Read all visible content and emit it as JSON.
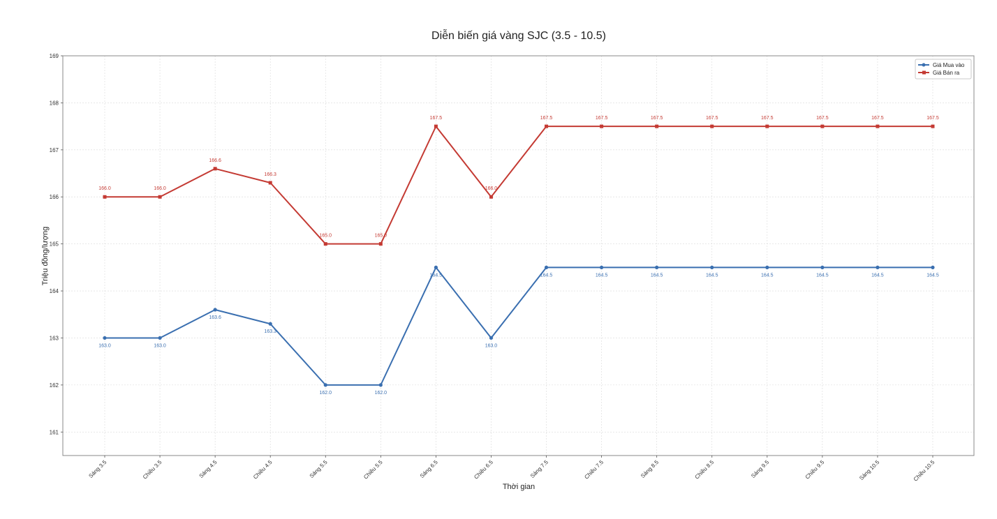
{
  "chart_data": {
    "type": "line",
    "title": "Diễn biến giá vàng SJC (3.5 - 10.5)",
    "xlabel": "Thời gian",
    "ylabel": "Triệu đồng/lượng",
    "categories": [
      "Sáng 3.5",
      "Chiều 3.5",
      "Sáng 4.5",
      "Chiều 4.5",
      "Sáng 5.5",
      "Chiều 5.5",
      "Sáng 6.5",
      "Chiều 6.5",
      "Sáng 7.5",
      "Chiều 7.5",
      "Sáng 8.5",
      "Chiều 8.5",
      "Sáng 9.5",
      "Chiều 9.5",
      "Sáng 10.5",
      "Chiều 10.5"
    ],
    "ylim": [
      160.5,
      169
    ],
    "yticks": [
      161,
      162,
      163,
      164,
      165,
      166,
      167,
      168,
      169
    ],
    "grid": true,
    "legend_position": "top-right",
    "series": [
      {
        "name": "Giá Mua vào",
        "color": "#3a6fb0",
        "marker": "circle",
        "values": [
          163.0,
          163.0,
          163.6,
          163.3,
          162.0,
          162.0,
          164.5,
          163.0,
          164.5,
          164.5,
          164.5,
          164.5,
          164.5,
          164.5,
          164.5,
          164.5
        ],
        "labels": [
          "163.0",
          "163.0",
          "163.6",
          "163.3",
          "162.0",
          "162.0",
          "164.5",
          "163.0",
          "164.5",
          "164.5",
          "164.5",
          "164.5",
          "164.5",
          "164.5",
          "164.5",
          "164.5"
        ]
      },
      {
        "name": "Giá Bán ra",
        "color": "#c43a33",
        "marker": "square",
        "values": [
          166.0,
          166.0,
          166.6,
          166.3,
          165.0,
          165.0,
          167.5,
          166.0,
          167.5,
          167.5,
          167.5,
          167.5,
          167.5,
          167.5,
          167.5,
          167.5
        ],
        "labels": [
          "166.0",
          "166.0",
          "166.6",
          "166.3",
          "165.0",
          "165.0",
          "167.5",
          "166.0",
          "167.5",
          "167.5",
          "167.5",
          "167.5",
          "167.5",
          "167.5",
          "167.5",
          "167.5"
        ]
      }
    ]
  }
}
